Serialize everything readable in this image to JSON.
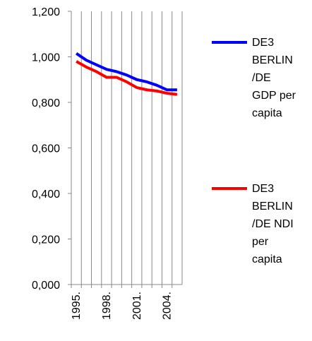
{
  "chart_data": {
    "type": "line",
    "categories": [
      "1995.",
      null,
      null,
      "1998.",
      null,
      null,
      "2001.",
      null,
      null,
      "2004.",
      null
    ],
    "series": [
      {
        "name": "DE3 BERLIN /DE GDP per capita",
        "color": "#0000ff",
        "values": [
          1.015,
          0.985,
          0.965,
          0.945,
          0.935,
          0.92,
          0.9,
          0.89,
          0.875,
          0.855,
          0.855
        ]
      },
      {
        "name": "DE3 BERLIN /DE NDI per capita",
        "color": "#ff0000",
        "values": [
          0.98,
          0.955,
          0.935,
          0.91,
          0.91,
          0.89,
          0.865,
          0.855,
          0.85,
          0.84,
          0.835
        ]
      }
    ],
    "ylim": [
      0,
      1.2
    ],
    "yticks": [
      {
        "value": 0,
        "label": "0,000"
      },
      {
        "value": 0.2,
        "label": "0,200"
      },
      {
        "value": 0.4,
        "label": "0,400"
      },
      {
        "value": 0.6,
        "label": "0,600"
      },
      {
        "value": 0.8,
        "label": "0,800"
      },
      {
        "value": 1.0,
        "label": "1,000"
      },
      {
        "value": 1.2,
        "label": "1,200"
      }
    ],
    "grid": true,
    "legend": "right"
  }
}
